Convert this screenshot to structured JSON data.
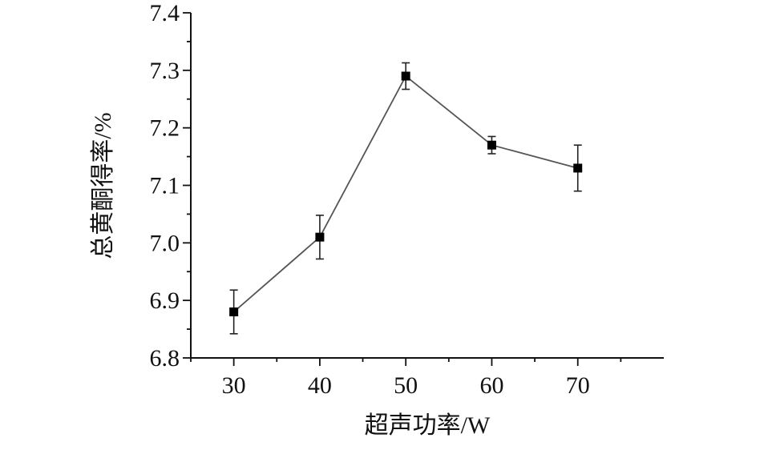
{
  "chart_data": {
    "type": "line",
    "xlabel": "超声功率/W",
    "ylabel": "总黄酮得率/%",
    "xlim": [
      25,
      80
    ],
    "ylim": [
      6.8,
      7.4
    ],
    "x_ticks": [
      "30",
      "40",
      "50",
      "60",
      "70"
    ],
    "y_ticks": [
      "6.8",
      "6.9",
      "7.0",
      "7.1",
      "7.2",
      "7.3",
      "7.4"
    ],
    "grid": false,
    "legend": "none",
    "series": [
      {
        "x": [
          30,
          40,
          50,
          60,
          70
        ],
        "y": [
          6.88,
          7.01,
          7.29,
          7.17,
          7.13
        ],
        "error": [
          0.038,
          0.038,
          0.023,
          0.015,
          0.04
        ],
        "marker": "square",
        "color": "#000000",
        "line_color": "#555555"
      }
    ]
  }
}
